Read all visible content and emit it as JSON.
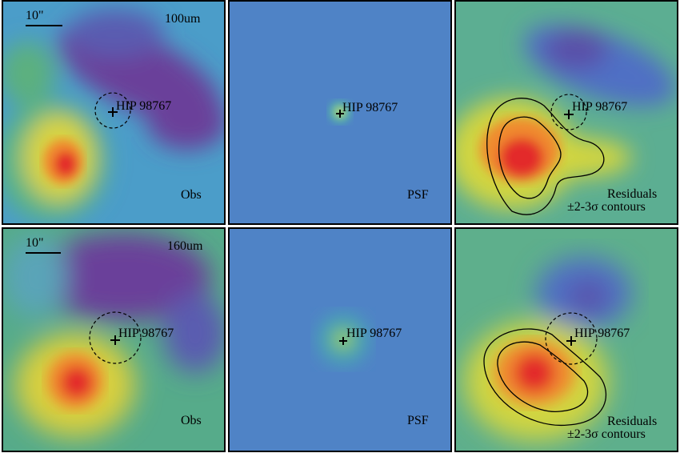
{
  "colors": {
    "background": "#4f83c6",
    "purple": "#6a3f9a",
    "green": "#4fb389",
    "yellow": "#e2cf3b",
    "orange": "#f08a2d",
    "red": "#e32b2b"
  },
  "rows": [
    {
      "band": "100um",
      "scale": "10\"",
      "panels": [
        {
          "type": "obs",
          "star": "HIP 98767",
          "label": "Obs"
        },
        {
          "type": "psf",
          "star": "HIP 98767",
          "label": "PSF"
        },
        {
          "type": "residuals",
          "star": "HIP 98767",
          "label": "Residuals",
          "label2": "±2-3σ contours"
        }
      ]
    },
    {
      "band": "160um",
      "scale": "10\"",
      "panels": [
        {
          "type": "obs",
          "star": "HIP 98767",
          "label": "Obs"
        },
        {
          "type": "psf",
          "star": "HIP 98767",
          "label": "PSF"
        },
        {
          "type": "residuals",
          "star": "HIP 98767",
          "label": "Residuals",
          "label2": "±2-3σ contours"
        }
      ]
    }
  ]
}
